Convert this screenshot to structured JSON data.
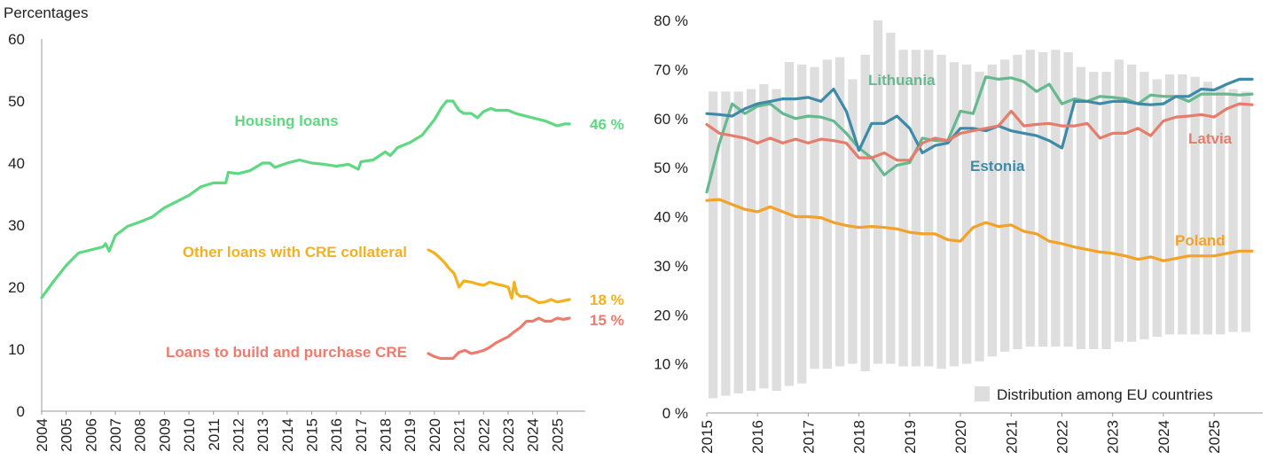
{
  "chart_data": [
    {
      "type": "line",
      "ylabel": "Percentages",
      "ylim": [
        0,
        60
      ],
      "yticks": [
        "0",
        "10",
        "20",
        "30",
        "40",
        "50",
        "60"
      ],
      "xticks": [
        "2004",
        "2005",
        "2006",
        "2007",
        "2008",
        "2009",
        "2010",
        "2011",
        "2012",
        "2013",
        "2014",
        "2015",
        "2016",
        "2017",
        "2018",
        "2019",
        "2020",
        "2021",
        "2022",
        "2023",
        "2024",
        "2025"
      ],
      "xlim": [
        2004.0,
        2026.0
      ],
      "grid": false,
      "series": [
        {
          "name": "Housing loans",
          "color": "#5fd882",
          "end_label": "46 %",
          "x": [
            2004.0,
            2004.5,
            2005.0,
            2005.5,
            2006.0,
            2006.5,
            2006.6,
            2006.75,
            2007.0,
            2007.5,
            2008.0,
            2008.5,
            2009.0,
            2009.5,
            2010.0,
            2010.5,
            2011.0,
            2011.5,
            2011.6,
            2012.0,
            2012.5,
            2013.0,
            2013.3,
            2013.5,
            2014.0,
            2014.5,
            2015.0,
            2015.5,
            2016.0,
            2016.5,
            2016.9,
            2017.0,
            2017.5,
            2018.0,
            2018.2,
            2018.5,
            2019.0,
            2019.5,
            2020.0,
            2020.3,
            2020.5,
            2020.75,
            2021.0,
            2021.2,
            2021.5,
            2021.75,
            2022.0,
            2022.3,
            2022.5,
            2023.0,
            2023.3,
            2023.5,
            2024.0,
            2024.5,
            2025.0,
            2025.3,
            2025.5
          ],
          "y": [
            18.3,
            21.0,
            23.5,
            25.5,
            26.0,
            26.5,
            27.0,
            25.8,
            28.3,
            29.8,
            30.5,
            31.3,
            32.8,
            33.8,
            34.8,
            36.2,
            36.8,
            36.8,
            38.5,
            38.3,
            38.8,
            40.0,
            40.0,
            39.3,
            40.0,
            40.5,
            40.0,
            39.8,
            39.5,
            39.8,
            39.0,
            40.2,
            40.5,
            41.8,
            41.2,
            42.5,
            43.3,
            44.5,
            47.0,
            49.0,
            50.0,
            50.0,
            48.5,
            48.0,
            48.0,
            47.3,
            48.3,
            48.8,
            48.5,
            48.5,
            48.0,
            47.8,
            47.3,
            46.8,
            46.0,
            46.3,
            46.3
          ]
        },
        {
          "name": "Other loans with CRE collateral",
          "color": "#f4b11e",
          "end_label": "18 %",
          "x": [
            2019.75,
            2020.0,
            2020.2,
            2020.4,
            2020.6,
            2020.8,
            2021.0,
            2021.2,
            2021.5,
            2021.75,
            2022.0,
            2022.25,
            2022.5,
            2022.75,
            2023.0,
            2023.15,
            2023.25,
            2023.35,
            2023.5,
            2023.75,
            2024.0,
            2024.25,
            2024.5,
            2024.75,
            2025.0,
            2025.25,
            2025.5
          ],
          "y": [
            26.0,
            25.5,
            24.8,
            24.0,
            23.0,
            22.2,
            20.0,
            21.0,
            20.8,
            20.5,
            20.3,
            20.8,
            20.5,
            20.3,
            20.0,
            18.2,
            20.8,
            19.0,
            18.5,
            18.5,
            18.0,
            17.5,
            17.6,
            18.0,
            17.6,
            17.8,
            18.0
          ]
        },
        {
          "name": "Loans to build and purchase CRE",
          "color": "#ef7b6e",
          "end_label": "15 %",
          "x": [
            2019.75,
            2020.0,
            2020.25,
            2020.5,
            2020.75,
            2021.0,
            2021.25,
            2021.5,
            2021.75,
            2022.0,
            2022.25,
            2022.5,
            2022.75,
            2023.0,
            2023.25,
            2023.5,
            2023.75,
            2024.0,
            2024.25,
            2024.5,
            2024.75,
            2025.0,
            2025.25,
            2025.5
          ],
          "y": [
            9.3,
            8.8,
            8.5,
            8.5,
            8.5,
            9.5,
            9.8,
            9.3,
            9.5,
            9.8,
            10.3,
            11.0,
            11.5,
            12.0,
            12.8,
            13.5,
            14.5,
            14.5,
            15.0,
            14.5,
            14.5,
            15.0,
            14.8,
            15.0
          ]
        }
      ]
    },
    {
      "type": "line",
      "ylim": [
        0,
        80
      ],
      "yticks": [
        "0 %",
        "10 %",
        "20 %",
        "30 %",
        "40 %",
        "50 %",
        "60 %",
        "70 %",
        "80 %"
      ],
      "xticks": [
        "2015",
        "2016",
        "2017",
        "2018",
        "2019",
        "2020",
        "2021",
        "2022",
        "2023",
        "2024",
        "2025"
      ],
      "xlim": [
        2015.0,
        2025.75
      ],
      "grid": false,
      "legend_position": "bottom-right",
      "distribution": {
        "name": "Distribution among EU countries",
        "color": "#dedede",
        "x": [
          2015.0,
          2015.25,
          2015.5,
          2015.75,
          2016.0,
          2016.25,
          2016.5,
          2016.75,
          2017.0,
          2017.25,
          2017.5,
          2017.75,
          2018.0,
          2018.25,
          2018.5,
          2018.75,
          2019.0,
          2019.25,
          2019.5,
          2019.75,
          2020.0,
          2020.25,
          2020.5,
          2020.75,
          2021.0,
          2021.25,
          2021.5,
          2021.75,
          2022.0,
          2022.25,
          2022.5,
          2022.75,
          2023.0,
          2023.25,
          2023.5,
          2023.75,
          2024.0,
          2024.25,
          2024.5,
          2024.75,
          2025.0,
          2025.25,
          2025.5
        ],
        "low": [
          3.0,
          3.5,
          4.0,
          4.5,
          5.0,
          4.5,
          5.5,
          6.0,
          9.0,
          9.0,
          9.5,
          10.0,
          8.5,
          10.0,
          10.0,
          9.5,
          9.5,
          9.5,
          9.0,
          9.5,
          10.0,
          10.5,
          11.5,
          12.5,
          13.0,
          13.5,
          13.5,
          13.5,
          13.5,
          13.0,
          13.0,
          13.0,
          14.5,
          14.5,
          15.0,
          15.5,
          16.0,
          16.0,
          16.0,
          16.0,
          16.0,
          16.5,
          16.5
        ],
        "high": [
          65.5,
          65.5,
          65.5,
          66.0,
          67.0,
          66.0,
          71.5,
          71.0,
          70.5,
          72.0,
          72.5,
          68.0,
          73.0,
          80.0,
          77.5,
          74.0,
          74.0,
          74.0,
          73.0,
          71.5,
          71.0,
          69.5,
          71.0,
          72.0,
          73.0,
          74.0,
          73.5,
          74.0,
          73.5,
          70.5,
          69.5,
          69.5,
          72.0,
          71.0,
          69.5,
          68.0,
          69.0,
          69.0,
          68.5,
          67.5,
          66.5,
          66.0,
          65.5
        ]
      },
      "series": [
        {
          "name": "Lithuania",
          "color": "#66b98f",
          "x": [
            2015.0,
            2015.25,
            2015.5,
            2015.75,
            2016.0,
            2016.25,
            2016.5,
            2016.75,
            2017.0,
            2017.25,
            2017.5,
            2017.75,
            2018.0,
            2018.25,
            2018.5,
            2018.75,
            2019.0,
            2019.25,
            2019.5,
            2019.75,
            2020.0,
            2020.25,
            2020.5,
            2020.75,
            2021.0,
            2021.25,
            2021.5,
            2021.75,
            2022.0,
            2022.25,
            2022.5,
            2022.75,
            2023.0,
            2023.25,
            2023.5,
            2023.75,
            2024.0,
            2024.25,
            2024.5,
            2024.75,
            2025.0,
            2025.25,
            2025.5,
            2025.75
          ],
          "y": [
            45.0,
            55.0,
            63.0,
            61.0,
            62.5,
            63.0,
            61.0,
            60.0,
            60.5,
            60.3,
            59.5,
            57.0,
            54.0,
            52.0,
            48.5,
            50.5,
            51.0,
            56.0,
            55.5,
            55.5,
            61.5,
            61.0,
            68.5,
            68.0,
            68.3,
            67.5,
            65.5,
            67.0,
            63.0,
            64.0,
            63.5,
            64.5,
            64.3,
            64.0,
            63.0,
            64.8,
            64.5,
            64.5,
            63.5,
            65.0,
            65.0,
            65.0,
            64.8,
            65.0
          ]
        },
        {
          "name": "Estonia",
          "color": "#3e8aa8",
          "x": [
            2015.0,
            2015.25,
            2015.5,
            2015.75,
            2016.0,
            2016.25,
            2016.5,
            2016.75,
            2017.0,
            2017.25,
            2017.5,
            2017.75,
            2018.0,
            2018.25,
            2018.5,
            2018.75,
            2019.0,
            2019.25,
            2019.5,
            2019.75,
            2020.0,
            2020.25,
            2020.5,
            2020.75,
            2021.0,
            2021.25,
            2021.5,
            2021.75,
            2022.0,
            2022.25,
            2022.5,
            2022.75,
            2023.0,
            2023.25,
            2023.5,
            2023.75,
            2024.0,
            2024.25,
            2024.5,
            2024.75,
            2025.0,
            2025.25,
            2025.5,
            2025.75
          ],
          "y": [
            61.0,
            60.8,
            60.5,
            62.0,
            63.0,
            63.5,
            64.0,
            64.0,
            64.3,
            63.5,
            66.0,
            61.5,
            53.5,
            59.0,
            59.0,
            60.5,
            58.0,
            53.0,
            54.5,
            55.0,
            58.0,
            58.0,
            57.5,
            58.5,
            57.5,
            57.0,
            56.5,
            55.5,
            54.0,
            63.5,
            63.5,
            63.0,
            63.5,
            63.5,
            63.0,
            62.8,
            63.0,
            64.5,
            64.5,
            66.0,
            65.8,
            67.0,
            68.0,
            68.0
          ]
        },
        {
          "name": "Latvia",
          "color": "#e67c6c",
          "x": [
            2015.0,
            2015.25,
            2015.5,
            2015.75,
            2016.0,
            2016.25,
            2016.5,
            2016.75,
            2017.0,
            2017.25,
            2017.5,
            2017.75,
            2018.0,
            2018.25,
            2018.5,
            2018.75,
            2019.0,
            2019.25,
            2019.5,
            2019.75,
            2020.0,
            2020.25,
            2020.5,
            2020.75,
            2021.0,
            2021.25,
            2021.5,
            2021.75,
            2022.0,
            2022.25,
            2022.5,
            2022.75,
            2023.0,
            2023.25,
            2023.5,
            2023.75,
            2024.0,
            2024.25,
            2024.5,
            2024.75,
            2025.0,
            2025.25,
            2025.5,
            2025.75
          ],
          "y": [
            58.8,
            57.0,
            56.5,
            56.0,
            55.0,
            56.0,
            55.0,
            55.8,
            55.0,
            55.8,
            55.5,
            55.0,
            52.0,
            52.0,
            53.0,
            51.5,
            51.5,
            55.0,
            56.0,
            55.5,
            57.0,
            57.5,
            58.0,
            58.5,
            61.5,
            58.5,
            58.8,
            59.0,
            58.5,
            58.5,
            59.0,
            56.0,
            57.0,
            57.0,
            58.0,
            56.5,
            59.5,
            60.3,
            60.5,
            60.8,
            60.3,
            62.0,
            63.0,
            62.8
          ]
        },
        {
          "name": "Poland",
          "color": "#f2a228",
          "x": [
            2015.0,
            2015.25,
            2015.5,
            2015.75,
            2016.0,
            2016.25,
            2016.5,
            2016.75,
            2017.0,
            2017.25,
            2017.5,
            2017.75,
            2018.0,
            2018.25,
            2018.5,
            2018.75,
            2019.0,
            2019.25,
            2019.5,
            2019.75,
            2020.0,
            2020.25,
            2020.5,
            2020.75,
            2021.0,
            2021.25,
            2021.5,
            2021.75,
            2022.0,
            2022.25,
            2022.5,
            2022.75,
            2023.0,
            2023.25,
            2023.5,
            2023.75,
            2024.0,
            2024.25,
            2024.5,
            2024.75,
            2025.0,
            2025.25,
            2025.5,
            2025.75
          ],
          "y": [
            43.3,
            43.5,
            42.5,
            41.5,
            41.0,
            42.0,
            41.0,
            40.0,
            40.0,
            39.8,
            38.8,
            38.2,
            37.8,
            38.0,
            37.8,
            37.5,
            36.8,
            36.5,
            36.5,
            35.3,
            35.0,
            37.8,
            38.8,
            38.0,
            38.3,
            37.0,
            36.5,
            35.0,
            34.5,
            33.8,
            33.3,
            32.8,
            32.5,
            32.0,
            31.3,
            31.8,
            31.0,
            31.5,
            32.0,
            32.0,
            32.0,
            32.5,
            33.0,
            33.0
          ]
        }
      ]
    }
  ]
}
